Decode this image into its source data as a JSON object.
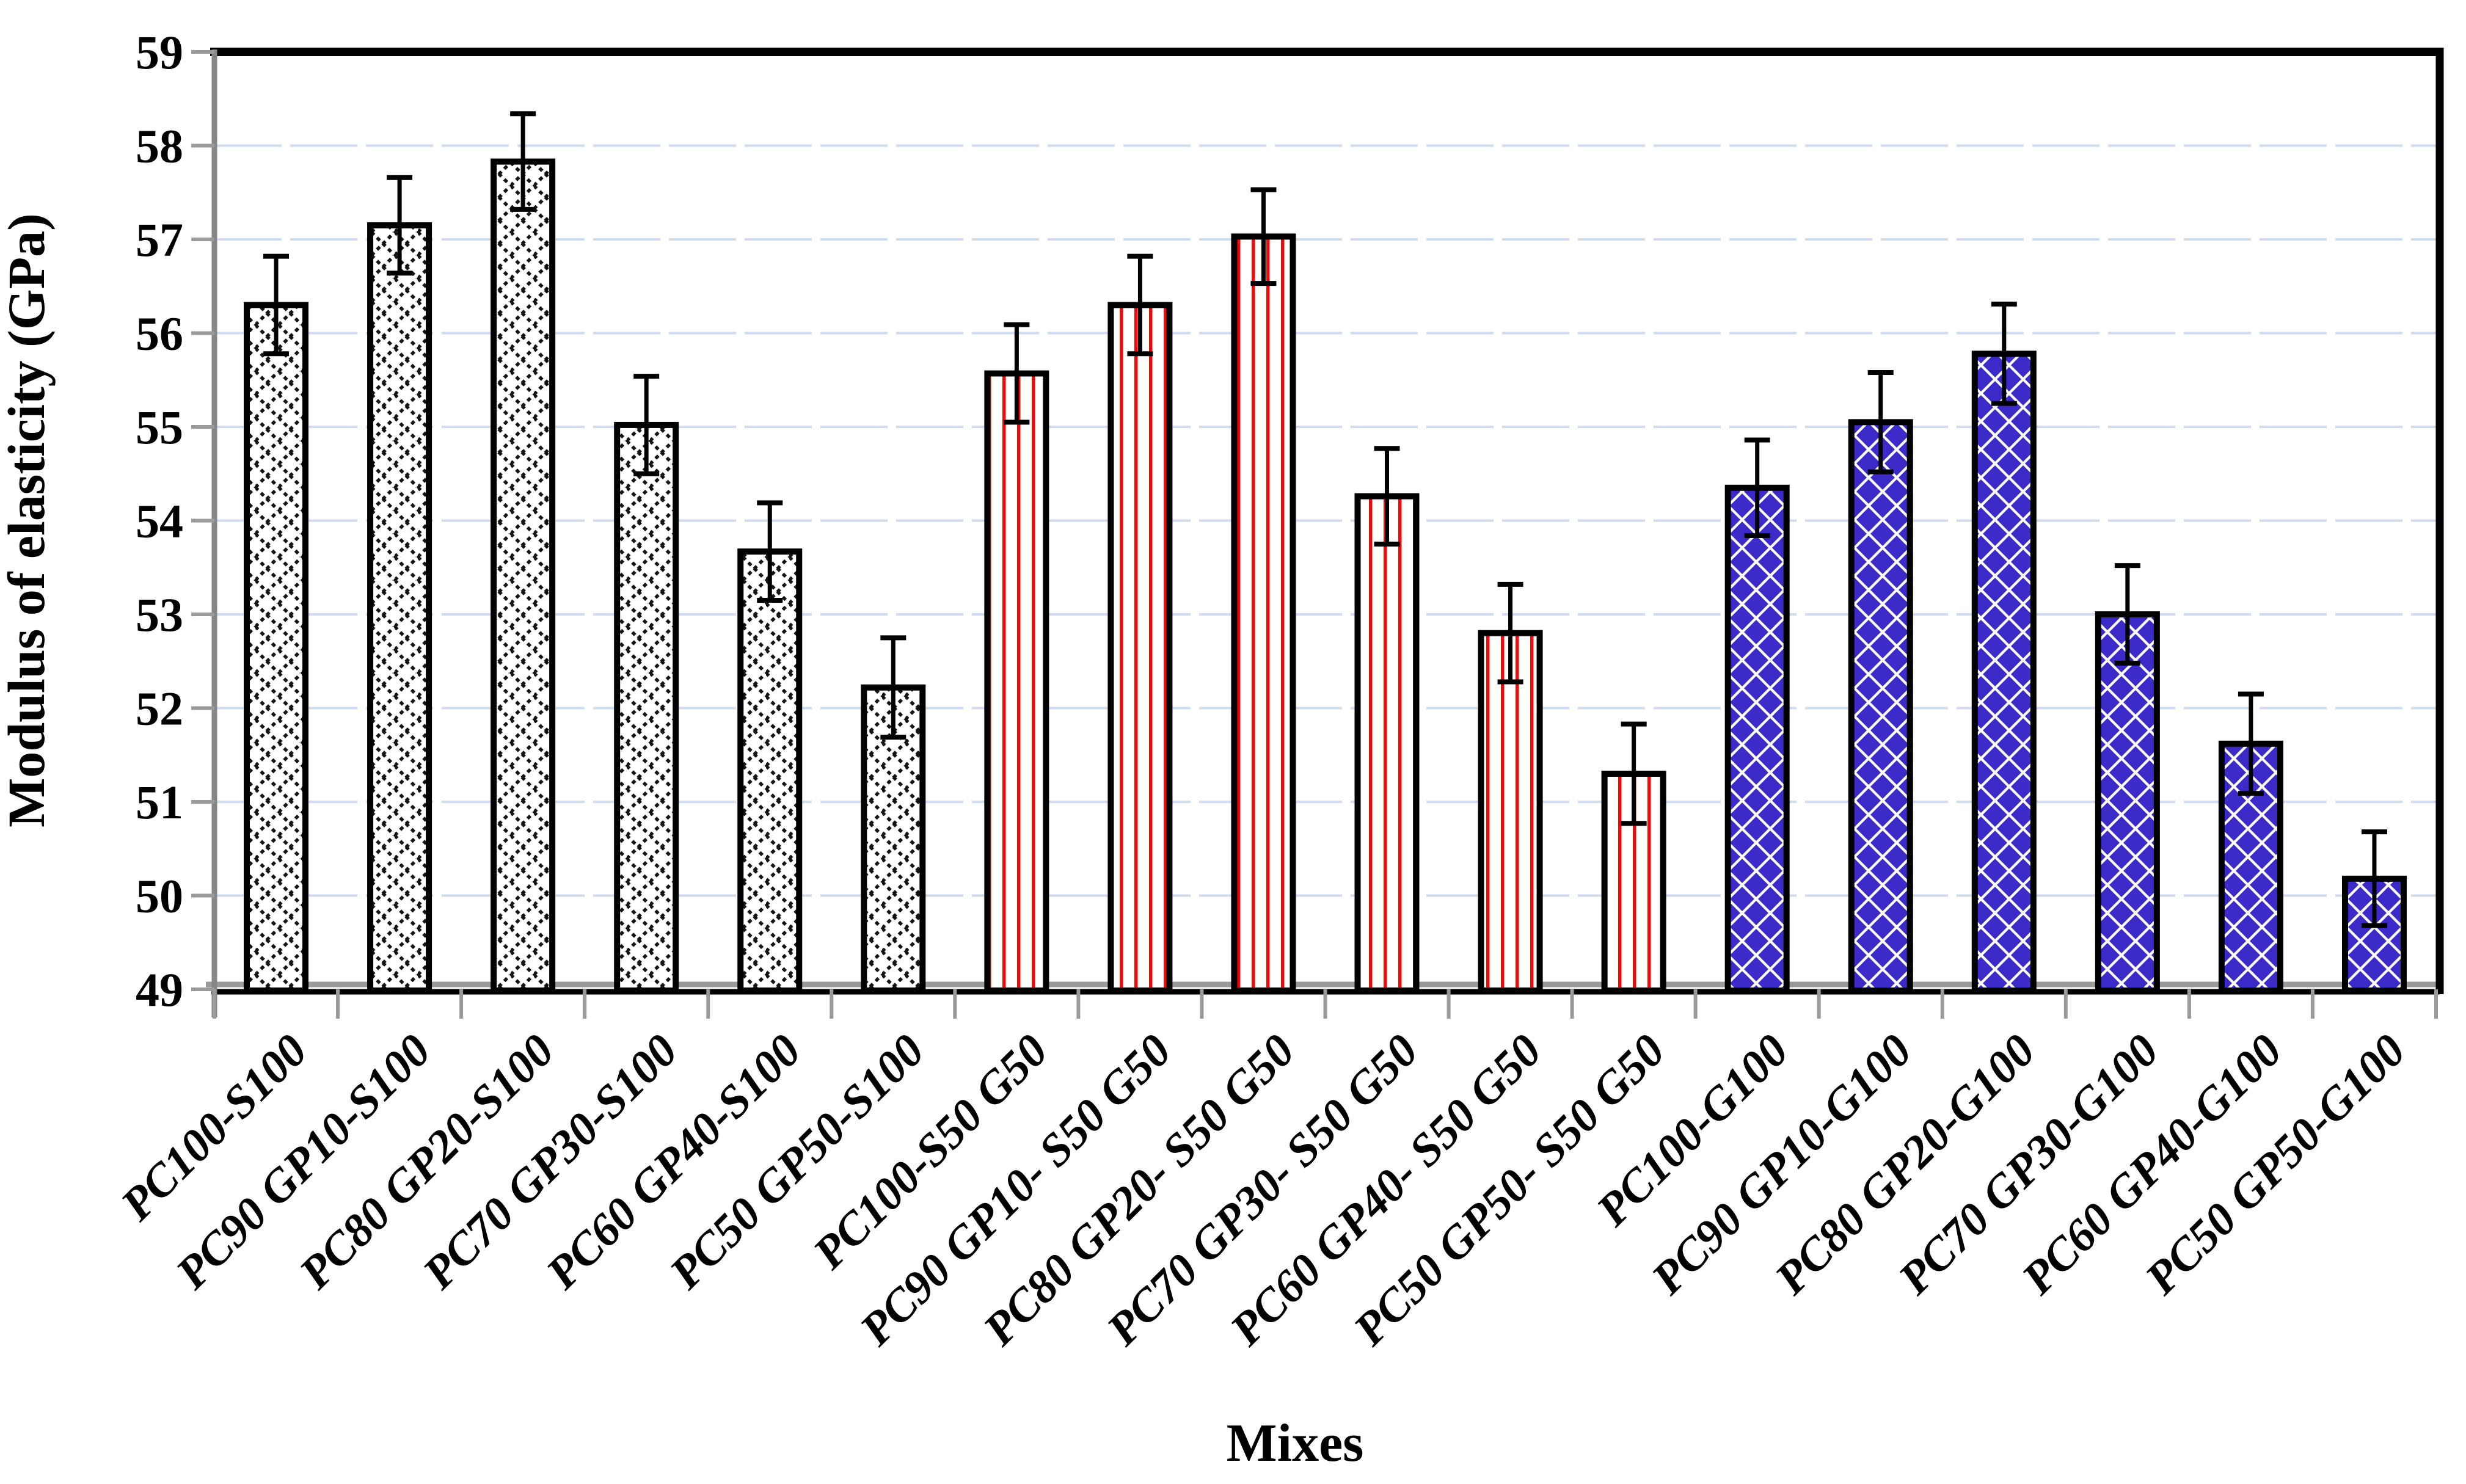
{
  "chart_data": {
    "type": "bar",
    "title": "",
    "xlabel": "Mixes",
    "ylabel": "Modulus of elasticity (GPa)",
    "ylim": [
      49,
      59
    ],
    "ytick_step": 1,
    "yticks": [
      49,
      50,
      51,
      52,
      53,
      54,
      55,
      56,
      57,
      58,
      59
    ],
    "grid": "horizontal-major-only",
    "legend": "none",
    "categories": [
      "PC100-S100",
      "PC90 GP10-S100",
      "PC80 GP20-S100",
      "PC70 GP30-S100",
      "PC60 GP40-S100",
      "PC50 GP50-S100",
      "PC100-S50 G50",
      "PC90 GP10- S50 G50",
      "PC80 GP20- S50 G50",
      "PC70 GP30- S50 G50",
      "PC60 GP40- S50 G50",
      "PC50 GP50- S50 G50",
      "PC100-G100",
      "PC90 GP10-G100",
      "PC80 GP20-G100",
      "PC70 GP30-G100",
      "PC60 GP40-G100",
      "PC50 GP50-G100"
    ],
    "values": [
      56.3,
      57.15,
      57.83,
      55.02,
      53.67,
      52.22,
      55.57,
      56.3,
      57.03,
      54.26,
      52.8,
      51.3,
      54.35,
      55.05,
      55.78,
      53.0,
      51.62,
      50.18
    ],
    "errors": [
      0.52,
      0.51,
      0.51,
      0.52,
      0.52,
      0.53,
      0.52,
      0.52,
      0.5,
      0.51,
      0.52,
      0.53,
      0.51,
      0.53,
      0.53,
      0.52,
      0.53,
      0.5
    ],
    "groups": [
      {
        "name": "S100 series",
        "start": 0,
        "end": 5,
        "pattern": "black-diagonal-crosshatch"
      },
      {
        "name": "S50 G50 series",
        "start": 6,
        "end": 11,
        "pattern": "red-vertical-stripes"
      },
      {
        "name": "G100 series",
        "start": 12,
        "end": 17,
        "pattern": "blue-solid-diamonds"
      }
    ],
    "colors": {
      "crosshatch_line": "#141414",
      "red_stripe": "#fb0505",
      "blue_diamond": "#3d2bc9",
      "bar_fill": "#ffffff",
      "bar_border": "#000000",
      "gridline": "#cfdcef",
      "axis_gray": "#9a9a9a",
      "border_black": "#000000",
      "error_bar": "#000000"
    }
  }
}
